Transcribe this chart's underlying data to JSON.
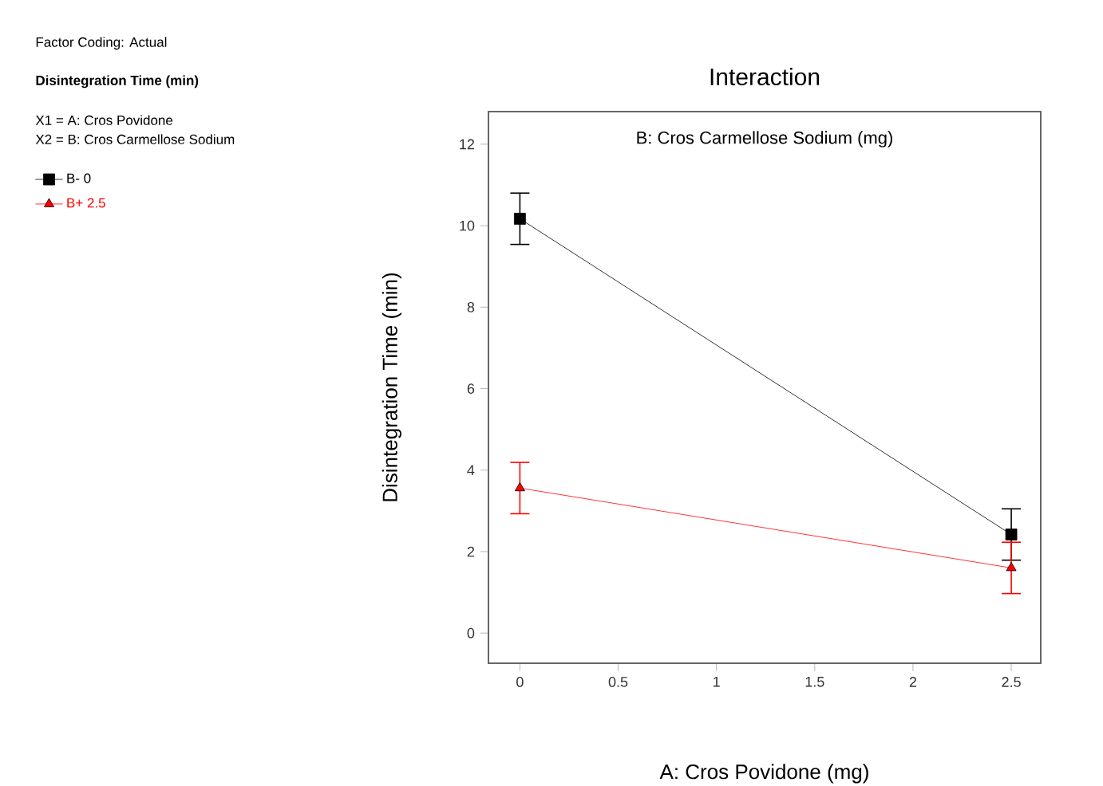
{
  "chart_data": {
    "type": "line",
    "title": "Interaction",
    "legend_title": "B: Cros Carmellose Sodium (mg)",
    "xlabel": "A: Cros Povidone (mg)",
    "ylabel": "Disintegration Time (min)",
    "x": [
      0,
      2.5
    ],
    "series": [
      {
        "name": "B- 0",
        "color": "#000000",
        "marker": "square",
        "values": [
          10.17,
          2.42
        ],
        "errors": [
          0.63,
          0.63
        ]
      },
      {
        "name": "B+ 2.5",
        "color": "#ff0000",
        "marker": "triangle",
        "values": [
          3.56,
          1.6
        ],
        "errors": [
          0.63,
          0.63
        ]
      }
    ],
    "xlim": [
      -0.16,
      2.65
    ],
    "ylim": [
      -0.74,
      12.8
    ],
    "xticks": [
      0,
      0.5,
      1,
      1.5,
      2,
      2.5
    ],
    "yticks": [
      0,
      2,
      4,
      6,
      8,
      10,
      12
    ],
    "grid": false,
    "legend": "top left",
    "line_style": "solid",
    "annotations": [
      "Factor Coding: Actual",
      "Disintegration Time (min)",
      "X1 = A: Cros Povidone",
      "X2 = B: Cros Carmellose Sodium"
    ]
  }
}
